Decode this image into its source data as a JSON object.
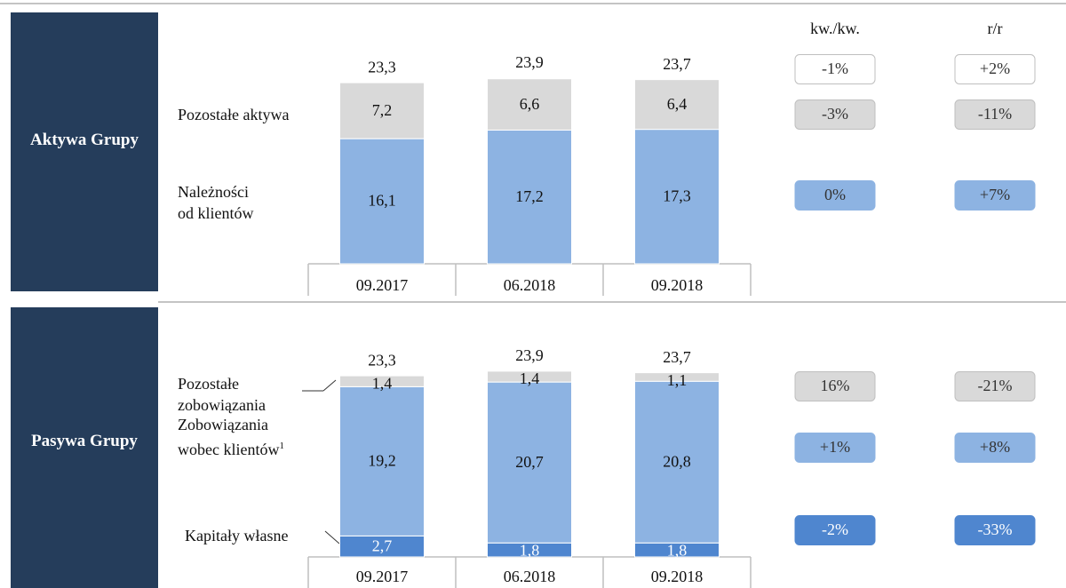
{
  "headers": [
    "kw./kw.",
    "r/r"
  ],
  "chart_data": [
    {
      "type": "bar",
      "stacked": true,
      "section": "Aktywa Grupy",
      "categories": [
        "09.2017",
        "06.2018",
        "09.2018"
      ],
      "totals": [
        23.3,
        23.9,
        23.7
      ],
      "total_labels": [
        "23,3",
        "23,9",
        "23,7"
      ],
      "total_changes": [
        "-1%",
        "+2%"
      ],
      "series": [
        {
          "name": "Należności od klientów",
          "color": "#8db3e2",
          "text_color": "#111111",
          "values": [
            16.1,
            17.2,
            17.3
          ],
          "value_labels": [
            "16,1",
            "17,2",
            "17,3"
          ],
          "changes": [
            "0%",
            "+7%"
          ]
        },
        {
          "name": "Pozostałe aktywa",
          "color": "#d9d9d9",
          "text_color": "#111111",
          "values": [
            7.2,
            6.6,
            6.4
          ],
          "value_labels": [
            "7,2",
            "6,6",
            "6,4"
          ],
          "changes": [
            "-3%",
            "-11%"
          ]
        }
      ]
    },
    {
      "type": "bar",
      "stacked": true,
      "section": "Pasywa Grupy",
      "categories": [
        "09.2017",
        "06.2018",
        "09.2018"
      ],
      "totals": [
        23.3,
        23.9,
        23.7
      ],
      "total_labels": [
        "23,3",
        "23,9",
        "23,7"
      ],
      "series": [
        {
          "name": "Kapitały własne",
          "color": "#4f86cf",
          "text_color": "#ffffff",
          "values": [
            2.7,
            1.8,
            1.8
          ],
          "value_labels": [
            "2,7",
            "1,8",
            "1,8"
          ],
          "changes": [
            "-2%",
            "-33%"
          ]
        },
        {
          "name": "Zobowiązania wobec klientów",
          "note": "1",
          "color": "#8db3e2",
          "text_color": "#111111",
          "values": [
            19.2,
            20.7,
            20.8
          ],
          "value_labels": [
            "19,2",
            "20,7",
            "20,8"
          ],
          "changes": [
            "+1%",
            "+8%"
          ]
        },
        {
          "name": "Pozostałe zobowiązania",
          "color": "#d9d9d9",
          "text_color": "#111111",
          "values": [
            1.4,
            1.4,
            1.1
          ],
          "value_labels": [
            "1,4",
            "1,4",
            "1,1"
          ],
          "changes": [
            "16%",
            "-21%"
          ]
        }
      ]
    }
  ]
}
